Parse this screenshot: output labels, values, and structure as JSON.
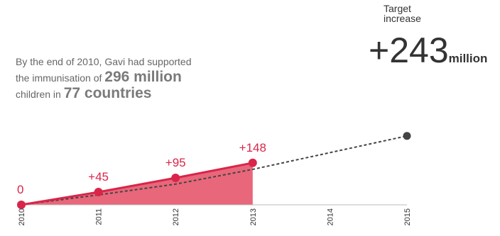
{
  "intro": {
    "line1": "By the end of 2010, Gavi had supported",
    "line2_pre": "the immunisation of",
    "line2_bold": "296 million",
    "line3_pre": "children in",
    "line3_bold": "77 countries"
  },
  "target": {
    "label_line1": "Target",
    "label_line2": "increase",
    "number": "+243",
    "unit": "million"
  },
  "chart_data": {
    "type": "area",
    "x": [
      2010,
      2011,
      2012,
      2013,
      2014,
      2015
    ],
    "tick_labels": [
      "2010",
      "2011",
      "2012",
      "2013",
      "2014",
      "2015"
    ],
    "series": [
      {
        "role": "actual",
        "x": [
          2010,
          2011,
          2012,
          2013
        ],
        "values": [
          0,
          45,
          95,
          148
        ],
        "data_labels": [
          "0",
          "+45",
          "+95",
          "+148"
        ],
        "color": "#d9254a",
        "fill": "#e8677a"
      },
      {
        "role": "target",
        "x": [
          2010,
          2011,
          2012,
          2013,
          2014,
          2015
        ],
        "values": [
          0,
          35,
          73,
          125,
          184,
          243
        ],
        "style": "dashed",
        "color": "#444444"
      }
    ],
    "ylim": [
      0,
      260
    ],
    "xlim": [
      2010,
      2015
    ],
    "grid": false,
    "title": "",
    "xlabel": "",
    "ylabel": ""
  },
  "colors": {
    "accent": "#d9254a",
    "area": "#e8677a",
    "target": "#444444",
    "axis": "#bbbbbb",
    "text_muted": "#666666"
  }
}
